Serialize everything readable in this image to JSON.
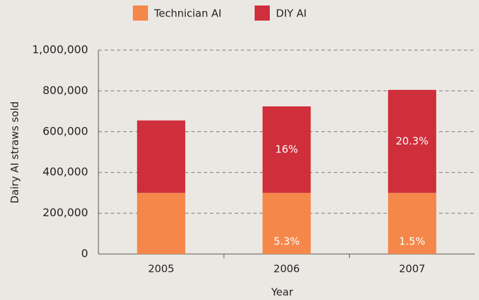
{
  "chart_data": {
    "type": "stacked_bar",
    "x_label": "Year",
    "y_label": "Dairy AI straws sold",
    "categories": [
      "2005",
      "2006",
      "2007"
    ],
    "series": [
      {
        "name": "Technician AI",
        "color": "#f5874a",
        "values": [
          300000,
          300000,
          300000
        ]
      },
      {
        "name": "DIY AI",
        "color": "#cf2e3b",
        "values": [
          355000,
          424000,
          505000
        ]
      }
    ],
    "annotations": [
      {
        "series": "Technician AI",
        "category": "2006",
        "text": "5.3%"
      },
      {
        "series": "DIY AI",
        "category": "2006",
        "text": "16%"
      },
      {
        "series": "Technician AI",
        "category": "2007",
        "text": "1.5%"
      },
      {
        "series": "DIY AI",
        "category": "2007",
        "text": "20.3%"
      }
    ],
    "ylim": [
      0,
      1000000
    ],
    "yticks": [
      0,
      {
        "value": 200000,
        "label": "200,000"
      },
      {
        "value": 400000,
        "label": "400,000"
      },
      {
        "value": 600000,
        "label": "600,000"
      },
      {
        "value": 800000,
        "label": "800,000"
      },
      {
        "value": 1000000,
        "label": "1,000,000"
      }
    ],
    "grid": true,
    "legend": "top"
  }
}
